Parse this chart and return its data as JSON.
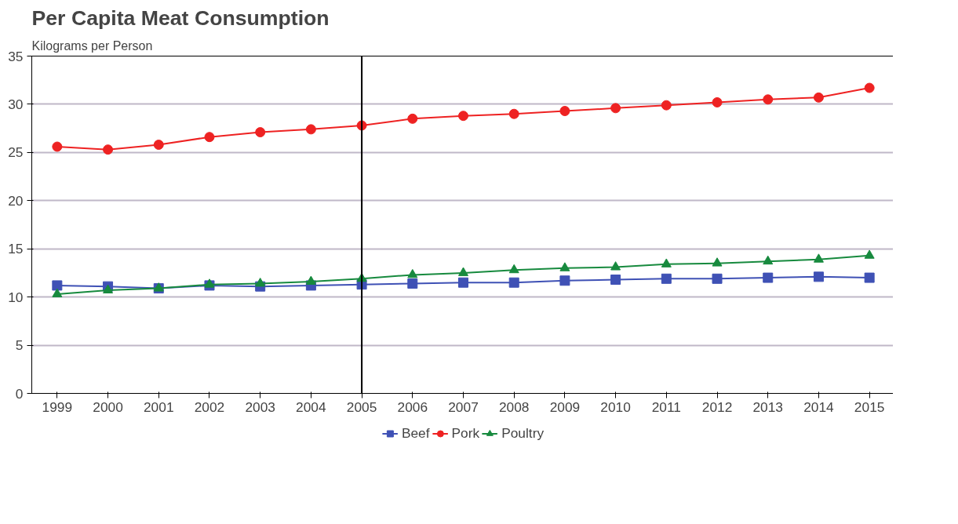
{
  "chart_data": {
    "type": "line",
    "title": "Per Capita Meat Consumption",
    "ylabel": "Kilograms per Person",
    "categories": [
      "1999",
      "2000",
      "2001",
      "2002",
      "2003",
      "2004",
      "2005",
      "2006",
      "2007",
      "2008",
      "2009",
      "2010",
      "2011",
      "2012",
      "2013",
      "2014",
      "2015"
    ],
    "series": [
      {
        "name": "Beef",
        "color": "#3f51b5",
        "marker": "square",
        "values": [
          11.2,
          11.1,
          10.9,
          11.2,
          11.1,
          11.2,
          11.3,
          11.4,
          11.5,
          11.5,
          11.7,
          11.8,
          11.9,
          11.9,
          12.0,
          12.1,
          12.0
        ]
      },
      {
        "name": "Pork",
        "color": "#ee2222",
        "marker": "circle",
        "values": [
          25.6,
          25.3,
          25.8,
          26.6,
          27.1,
          27.4,
          27.8,
          28.5,
          28.8,
          29.0,
          29.3,
          29.6,
          29.9,
          30.2,
          30.5,
          30.7,
          31.7
        ]
      },
      {
        "name": "Poultry",
        "color": "#178a3e",
        "marker": "triangle",
        "values": [
          10.3,
          10.7,
          10.9,
          11.3,
          11.4,
          11.6,
          11.9,
          12.3,
          12.5,
          12.8,
          13.0,
          13.1,
          13.4,
          13.5,
          13.7,
          13.9,
          14.3
        ]
      }
    ],
    "ylim": [
      0,
      35
    ],
    "yticks": [
      0,
      5,
      10,
      15,
      20,
      25,
      30,
      35
    ],
    "grid": "y",
    "legend": "bottom",
    "ref_lines": [
      {
        "axis": "x",
        "value": "2005",
        "color": "#000000"
      }
    ]
  }
}
